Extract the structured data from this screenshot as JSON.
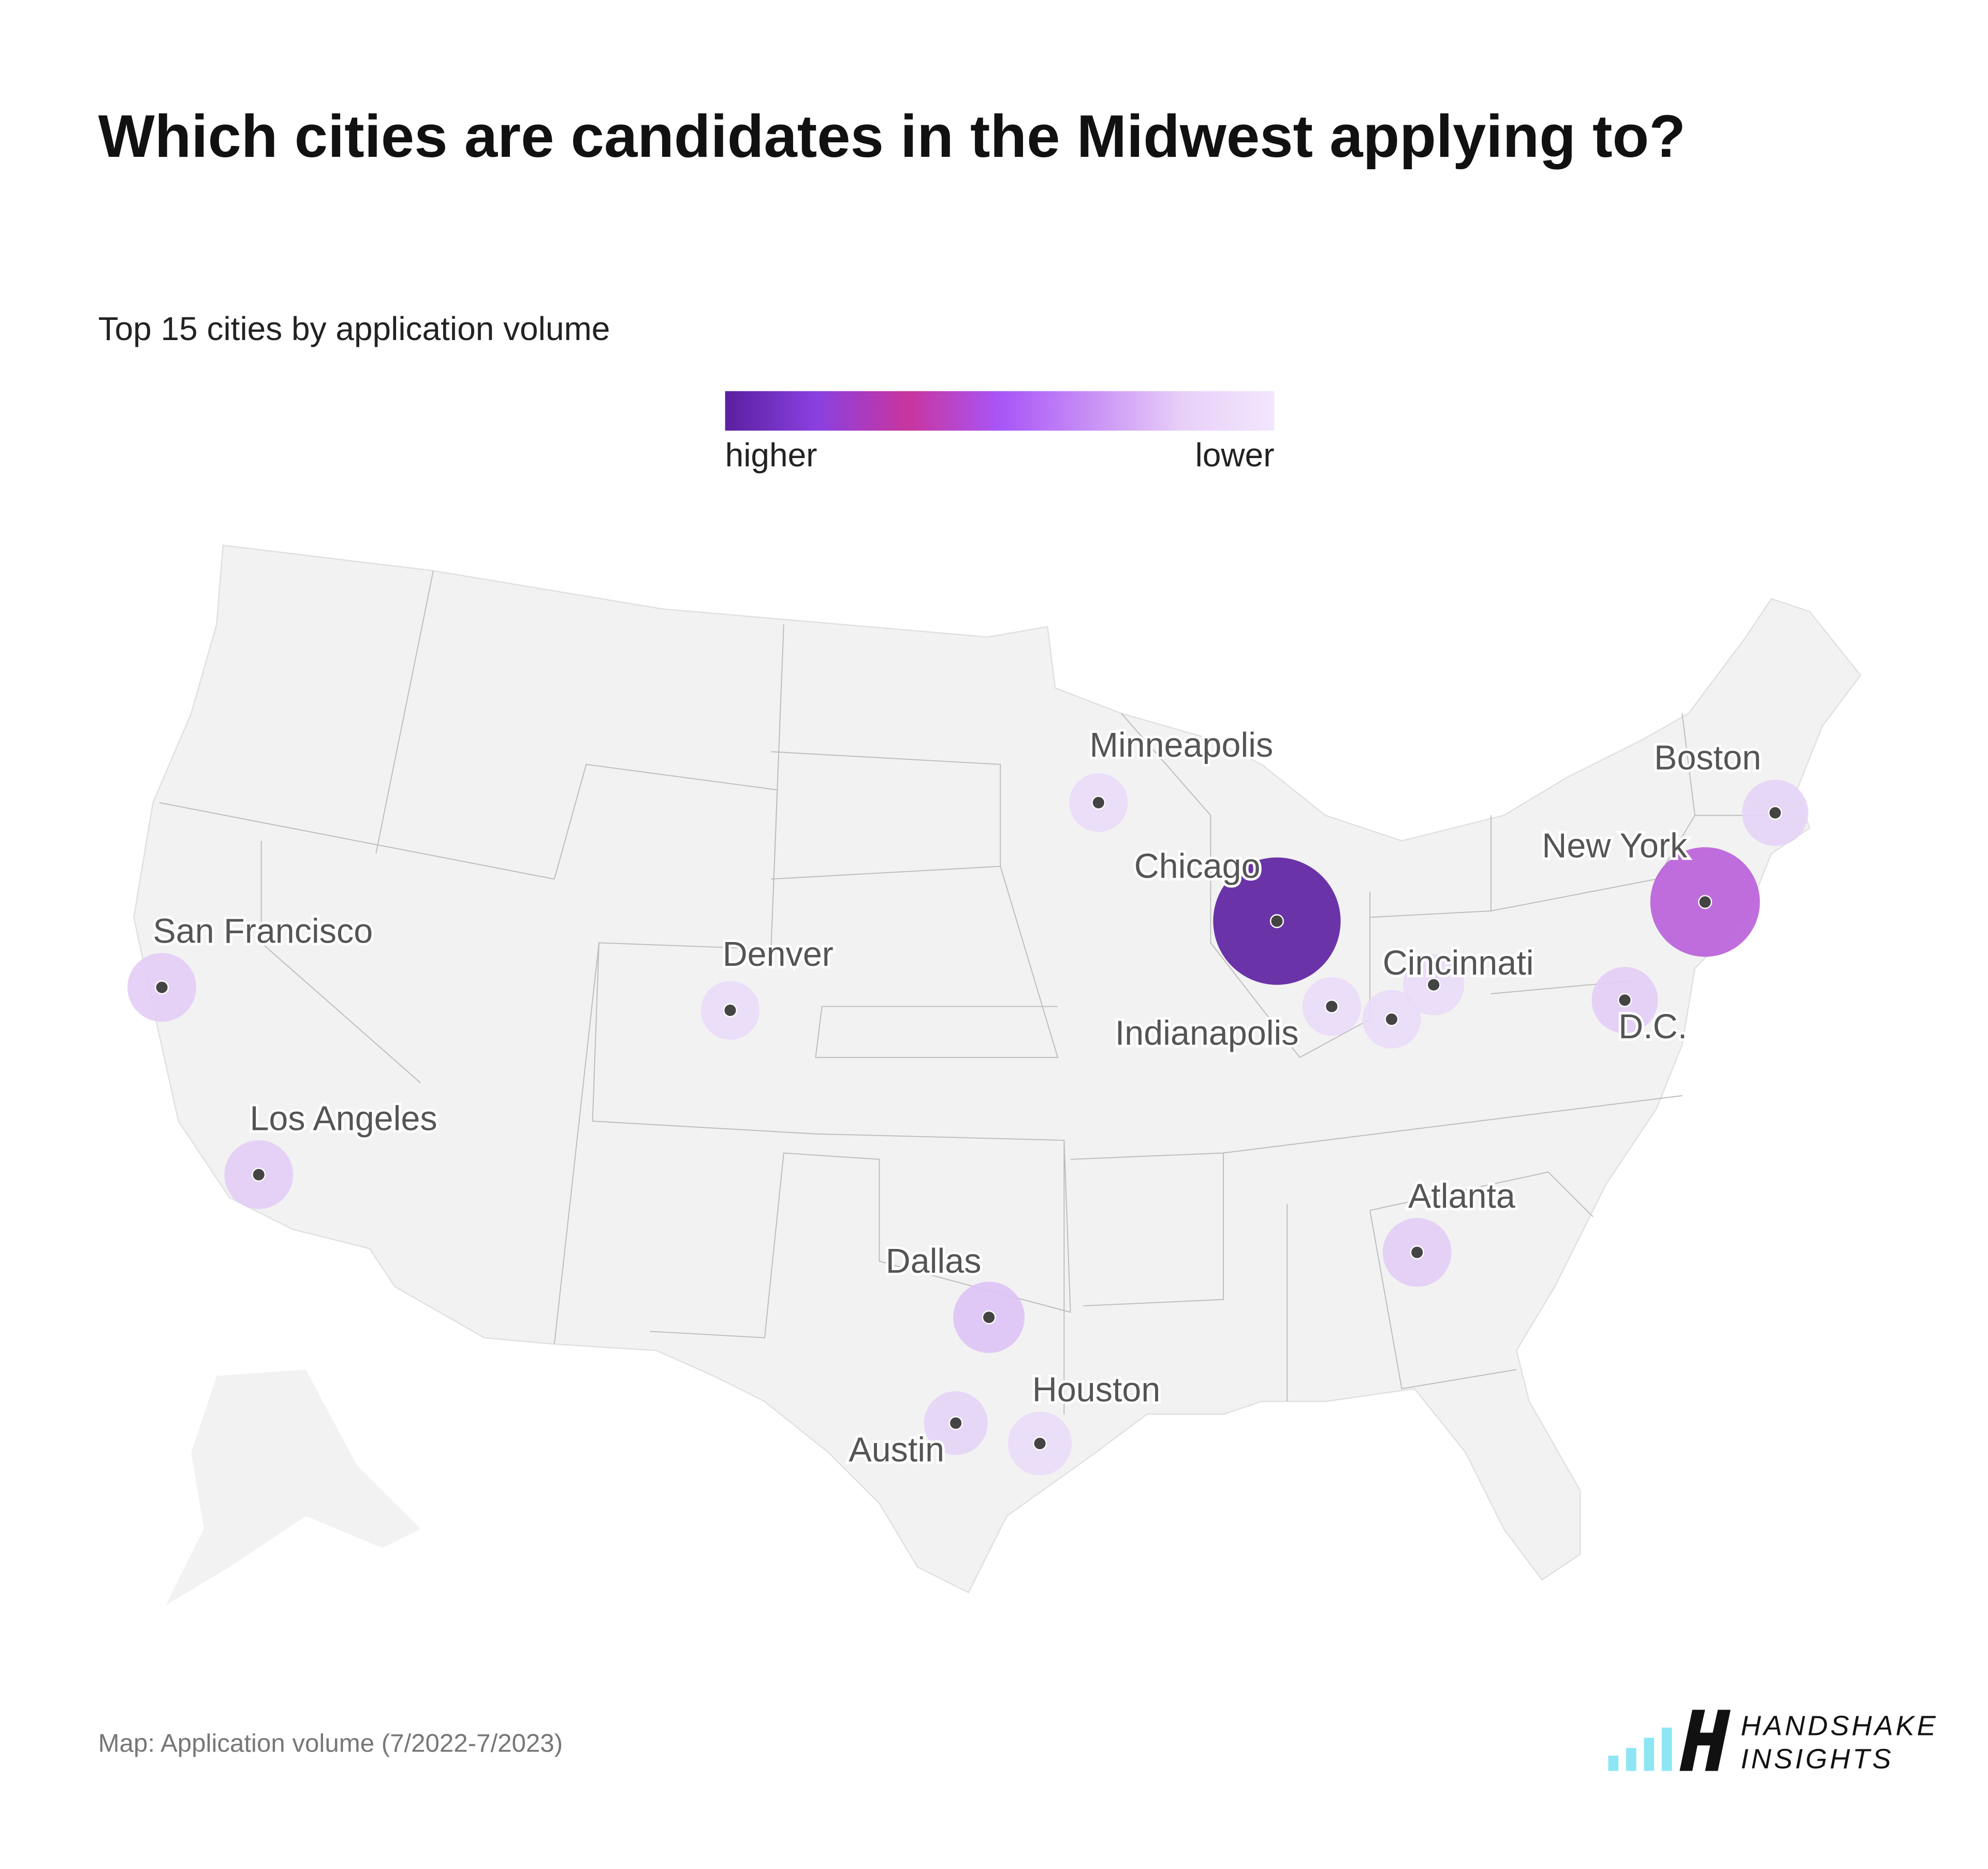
{
  "header": {
    "title": "Which cities are candidates in the Midwest applying to?",
    "subtitle": "Top 15 cities by application volume"
  },
  "legend": {
    "high_label": "higher",
    "low_label": "lower",
    "colors": [
      "#5b1fa0",
      "#8a40e0",
      "#c8359e",
      "#a855f7",
      "#c890f5",
      "#e8d0f8",
      "#f3e6fd"
    ]
  },
  "cities": [
    {
      "label": "San Francisco",
      "color": "#e3cdf6"
    },
    {
      "label": "Los Angeles",
      "color": "#e3cdf6"
    },
    {
      "label": "Denver",
      "color": "#eadcf8"
    },
    {
      "label": "Minneapolis",
      "color": "#eadcf8"
    },
    {
      "label": "Chicago",
      "color": "#5b1fa0"
    },
    {
      "label": "Indianapolis",
      "color": "#eadcf8"
    },
    {
      "label": null,
      "color": "#eadcf8"
    },
    {
      "label": "Cincinnati",
      "color": "#eadcf8"
    },
    {
      "label": "D.C.",
      "color": "#e3cdf6"
    },
    {
      "label": "New York",
      "color": "#b95ed9"
    },
    {
      "label": "Boston",
      "color": "#e6d4f7"
    },
    {
      "label": "Atlanta",
      "color": "#e3cdf6"
    },
    {
      "label": "Dallas",
      "color": "#ddc3f5"
    },
    {
      "label": "Austin",
      "color": "#e6d4f7"
    },
    {
      "label": "Houston",
      "color": "#eadcf8"
    }
  ],
  "footer": {
    "source": "Map: Application volume (7/2022-7/2023)",
    "logo": [
      "HANDSHAKE",
      "INSIGHTS"
    ]
  }
}
